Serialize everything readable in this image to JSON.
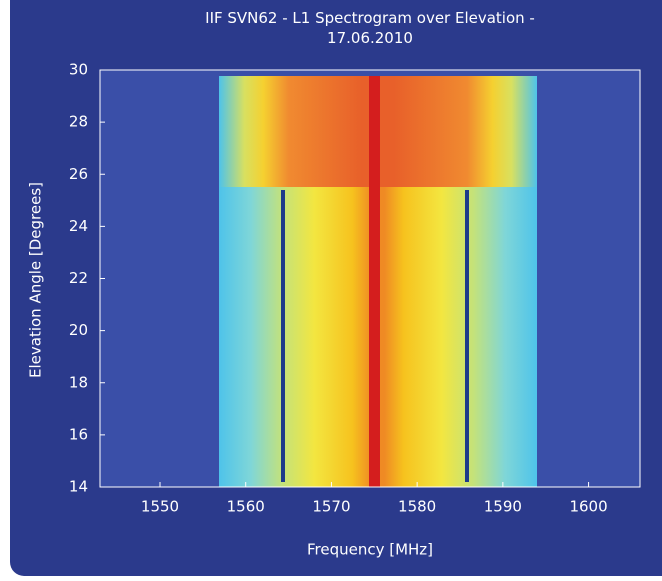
{
  "chart_data": {
    "type": "spectrogram",
    "title": "IIF SVN62 - L1 Spectrogram over Elevation - 17.06.2010",
    "x_label": "Frequency [MHz]",
    "y_label": "Elevation Angle [Degrees]",
    "xlim": [
      1543,
      1606
    ],
    "xticks": [
      1550,
      1560,
      1570,
      1580,
      1590,
      1600
    ],
    "ylim": [
      14,
      30
    ],
    "yticks": [
      14,
      16,
      18,
      20,
      22,
      24,
      26,
      28,
      30
    ]
  }
}
